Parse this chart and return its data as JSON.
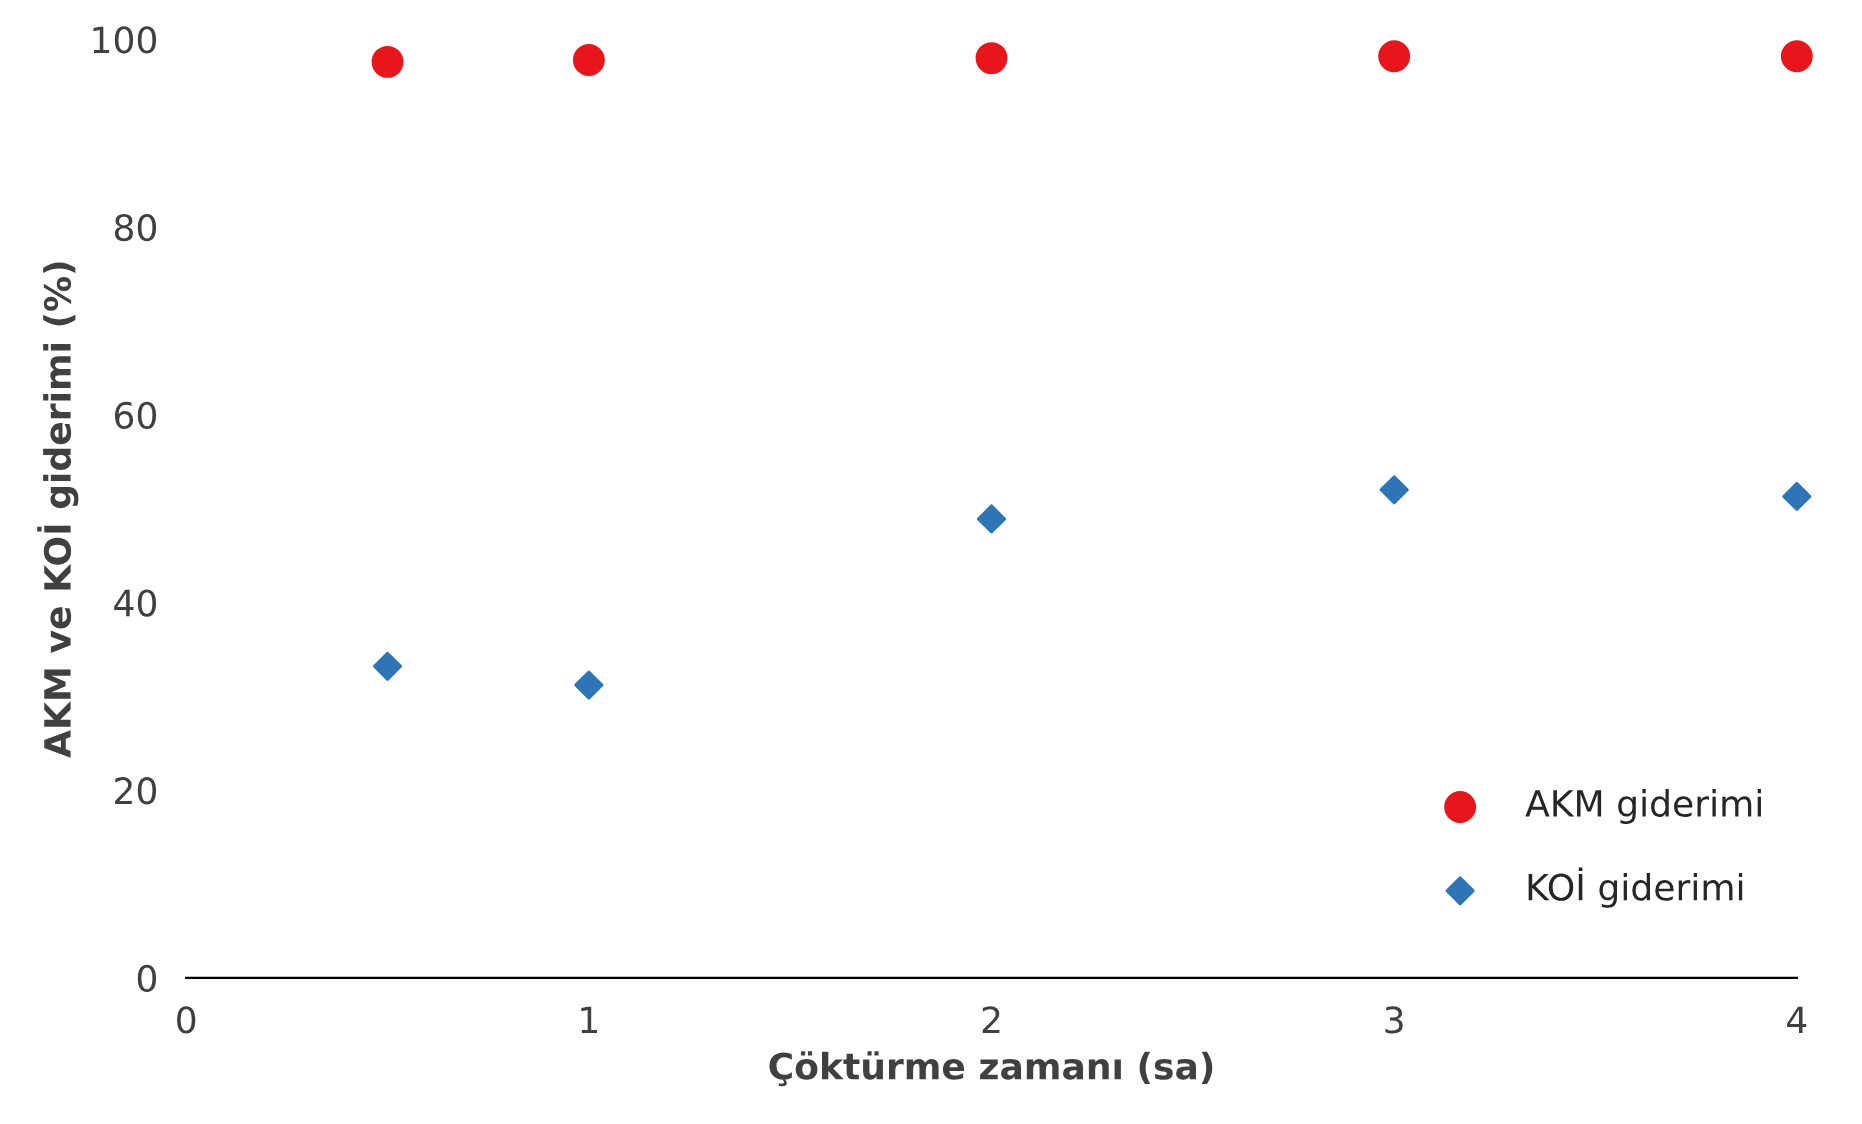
{
  "chart_data": {
    "type": "scatter",
    "xlabel": "Çöktürme zamanı (sa)",
    "ylabel": "AKM ve KOİ giderimi (%)",
    "xlim": [
      0,
      4
    ],
    "xticks": [
      0,
      1,
      2,
      3,
      4
    ],
    "ylim": [
      0,
      100
    ],
    "yticks": [
      0,
      20,
      40,
      60,
      80,
      100
    ],
    "grid": false,
    "legend": "bottom right",
    "series": [
      {
        "name": "AKM giderimi",
        "color": "#e8161b",
        "marker": "circle",
        "x": [
          0.5,
          1,
          2,
          3,
          4
        ],
        "values": [
          97.6,
          97.8,
          98.0,
          98.2,
          98.2
        ]
      },
      {
        "name": "KOİ giderimi",
        "color": "#2e75b6",
        "marker": "diamond",
        "x": [
          0.5,
          1,
          2,
          3,
          4
        ],
        "values": [
          33.2,
          31.2,
          48.9,
          52.0,
          51.3
        ]
      }
    ]
  }
}
